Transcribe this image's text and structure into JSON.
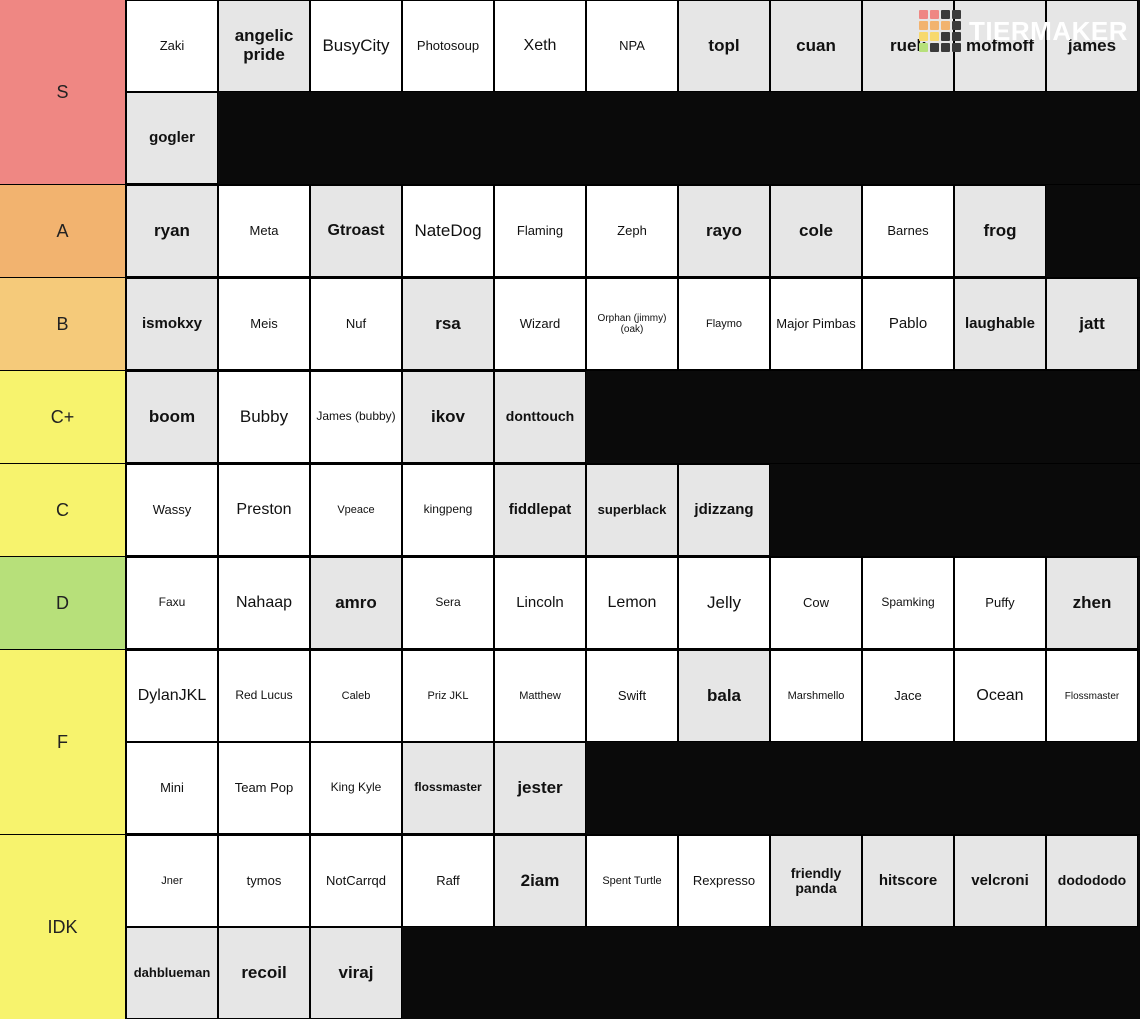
{
  "logo": {
    "text": "TIERMAKER"
  },
  "logo_colors": {
    "row1": [
      "#ef8783",
      "#ef8783",
      "#3a3a3a",
      "#3a3a3a"
    ],
    "row2": [
      "#f2b36f",
      "#f2b36f",
      "#f2b36f",
      "#3a3a3a"
    ],
    "row3": [
      "#f7d96d",
      "#f7d96d",
      "#3a3a3a",
      "#3a3a3a"
    ],
    "row4": [
      "#b7e07a",
      "#3a3a3a",
      "#3a3a3a",
      "#3a3a3a"
    ]
  },
  "item_bg": {
    "white": "#ffffff",
    "grey": "#e6e6e6"
  },
  "tiers": [
    {
      "label": "S",
      "color": "#ef8783",
      "items": [
        {
          "t": "Zaki",
          "bg": "white",
          "bold": false
        },
        {
          "t": "angelic pride",
          "bg": "grey",
          "bold": true
        },
        {
          "t": "BusyCity",
          "bg": "white",
          "bold": false,
          "fs": 17
        },
        {
          "t": "Photosoup",
          "bg": "white",
          "bold": false
        },
        {
          "t": "Xeth",
          "bg": "white",
          "bold": false,
          "fs": 16
        },
        {
          "t": "NPA",
          "bg": "white",
          "bold": false
        },
        {
          "t": "topl",
          "bg": "grey",
          "bold": true
        },
        {
          "t": "cuan",
          "bg": "grey",
          "bold": true
        },
        {
          "t": "ruek",
          "bg": "grey",
          "bold": true
        },
        {
          "t": "mofmoff",
          "bg": "grey",
          "bold": true
        },
        {
          "t": "james",
          "bg": "grey",
          "bold": true
        },
        {
          "t": "gogler",
          "bg": "grey",
          "bold": true,
          "fs": 15
        }
      ]
    },
    {
      "label": "A",
      "color": "#f2b36f",
      "items": [
        {
          "t": "ryan",
          "bg": "grey",
          "bold": true
        },
        {
          "t": "Meta",
          "bg": "white",
          "bold": false
        },
        {
          "t": "Gtroast",
          "bg": "grey",
          "bold": true,
          "fs": 16
        },
        {
          "t": "NateDog",
          "bg": "white",
          "bold": false,
          "fs": 17
        },
        {
          "t": "Flaming",
          "bg": "white",
          "bold": false
        },
        {
          "t": "Zeph",
          "bg": "white",
          "bold": false
        },
        {
          "t": "rayo",
          "bg": "grey",
          "bold": true
        },
        {
          "t": "cole",
          "bg": "grey",
          "bold": true
        },
        {
          "t": "Barnes",
          "bg": "white",
          "bold": false
        },
        {
          "t": "frog",
          "bg": "grey",
          "bold": true
        }
      ]
    },
    {
      "label": "B",
      "color": "#f5ca7a",
      "items": [
        {
          "t": "ismokxy",
          "bg": "grey",
          "bold": true,
          "fs": 15
        },
        {
          "t": "Meis",
          "bg": "white",
          "bold": false
        },
        {
          "t": "Nuf",
          "bg": "white",
          "bold": false
        },
        {
          "t": "rsa",
          "bg": "grey",
          "bold": true
        },
        {
          "t": "Wizard",
          "bg": "white",
          "bold": false
        },
        {
          "t": "Orphan (jimmy) (oak)",
          "bg": "white",
          "bold": false,
          "fs": 10
        },
        {
          "t": "Flaymo",
          "bg": "white",
          "bold": false,
          "fs": 11
        },
        {
          "t": "Major Pimbas",
          "bg": "white",
          "bold": false,
          "fs": 13
        },
        {
          "t": "Pablo",
          "bg": "white",
          "bold": false,
          "fs": 15
        },
        {
          "t": "laughable",
          "bg": "grey",
          "bold": true,
          "fs": 15
        },
        {
          "t": "jatt",
          "bg": "grey",
          "bold": true
        }
      ]
    },
    {
      "label": "C+",
      "color": "#f7f36d",
      "items": [
        {
          "t": "boom",
          "bg": "grey",
          "bold": true
        },
        {
          "t": "Bubby",
          "bg": "white",
          "bold": false,
          "fs": 17
        },
        {
          "t": "James (bubby)",
          "bg": "white",
          "bold": false,
          "fs": 12
        },
        {
          "t": "ikov",
          "bg": "grey",
          "bold": true
        },
        {
          "t": "donttouch",
          "bg": "grey",
          "bold": true,
          "fs": 14
        }
      ]
    },
    {
      "label": "C",
      "color": "#f7f36d",
      "items": [
        {
          "t": "Wassy",
          "bg": "white",
          "bold": false
        },
        {
          "t": "Preston",
          "bg": "white",
          "bold": false,
          "fs": 16
        },
        {
          "t": "Vpeace",
          "bg": "white",
          "bold": false,
          "fs": 11
        },
        {
          "t": "kingpeng",
          "bg": "white",
          "bold": false,
          "fs": 12
        },
        {
          "t": "fiddlepat",
          "bg": "grey",
          "bold": true,
          "fs": 15
        },
        {
          "t": "superblack",
          "bg": "grey",
          "bold": true,
          "fs": 13
        },
        {
          "t": "jdizzang",
          "bg": "grey",
          "bold": true,
          "fs": 15
        }
      ]
    },
    {
      "label": "D",
      "color": "#b7e07a",
      "items": [
        {
          "t": "Faxu",
          "bg": "white",
          "bold": false,
          "fs": 12
        },
        {
          "t": "Nahaap",
          "bg": "white",
          "bold": false,
          "fs": 16
        },
        {
          "t": "amro",
          "bg": "grey",
          "bold": true
        },
        {
          "t": "Sera",
          "bg": "white",
          "bold": false,
          "fs": 12
        },
        {
          "t": "Lincoln",
          "bg": "white",
          "bold": false,
          "fs": 15
        },
        {
          "t": "Lemon",
          "bg": "white",
          "bold": false,
          "fs": 16
        },
        {
          "t": "Jelly",
          "bg": "white",
          "bold": false,
          "fs": 17
        },
        {
          "t": "Cow",
          "bg": "white",
          "bold": false
        },
        {
          "t": "Spamking",
          "bg": "white",
          "bold": false,
          "fs": 12
        },
        {
          "t": "Puffy",
          "bg": "white",
          "bold": false
        },
        {
          "t": "zhen",
          "bg": "grey",
          "bold": true
        }
      ]
    },
    {
      "label": "F",
      "color": "#f7f36d",
      "items": [
        {
          "t": "DylanJKL",
          "bg": "white",
          "bold": false,
          "fs": 16
        },
        {
          "t": "Red Lucus",
          "bg": "white",
          "bold": false,
          "fs": 12
        },
        {
          "t": "Caleb",
          "bg": "white",
          "bold": false,
          "fs": 11
        },
        {
          "t": "Priz JKL",
          "bg": "white",
          "bold": false,
          "fs": 11
        },
        {
          "t": "Matthew",
          "bg": "white",
          "bold": false,
          "fs": 11
        },
        {
          "t": "Swift",
          "bg": "white",
          "bold": false
        },
        {
          "t": "bala",
          "bg": "grey",
          "bold": true
        },
        {
          "t": "Marshmello",
          "bg": "white",
          "bold": false,
          "fs": 11
        },
        {
          "t": "Jace",
          "bg": "white",
          "bold": false
        },
        {
          "t": "Ocean",
          "bg": "white",
          "bold": false,
          "fs": 16
        },
        {
          "t": "Flossmaster",
          "bg": "white",
          "bold": false,
          "fs": 10
        },
        {
          "t": "Mini",
          "bg": "white",
          "bold": false
        },
        {
          "t": "Team Pop",
          "bg": "white",
          "bold": false
        },
        {
          "t": "King Kyle",
          "bg": "white",
          "bold": false,
          "fs": 12
        },
        {
          "t": "flossmaster",
          "bg": "grey",
          "bold": true,
          "fs": 12
        },
        {
          "t": "jester",
          "bg": "grey",
          "bold": true
        }
      ]
    },
    {
      "label": "IDK",
      "color": "#f7f36d",
      "items": [
        {
          "t": "Jner",
          "bg": "white",
          "bold": false,
          "fs": 11
        },
        {
          "t": "tymos",
          "bg": "white",
          "bold": false
        },
        {
          "t": "NotCarrqd",
          "bg": "white",
          "bold": false,
          "fs": 13
        },
        {
          "t": "Raff",
          "bg": "white",
          "bold": false
        },
        {
          "t": "2iam",
          "bg": "grey",
          "bold": true
        },
        {
          "t": "Spent Turtle",
          "bg": "white",
          "bold": false,
          "fs": 11
        },
        {
          "t": "Rexpresso",
          "bg": "white",
          "bold": false,
          "fs": 13
        },
        {
          "t": "friendly panda",
          "bg": "grey",
          "bold": true,
          "fs": 14
        },
        {
          "t": "hitscore",
          "bg": "grey",
          "bold": true,
          "fs": 15
        },
        {
          "t": "velcroni",
          "bg": "grey",
          "bold": true,
          "fs": 15
        },
        {
          "t": "dodododo",
          "bg": "grey",
          "bold": true,
          "fs": 14
        },
        {
          "t": "dahblueman",
          "bg": "grey",
          "bold": true,
          "fs": 13
        },
        {
          "t": "recoil",
          "bg": "grey",
          "bold": true
        },
        {
          "t": "viraj",
          "bg": "grey",
          "bold": true
        }
      ]
    }
  ]
}
